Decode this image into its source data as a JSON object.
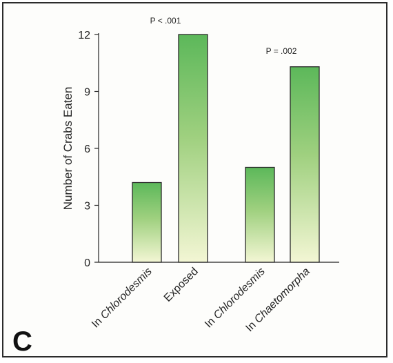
{
  "chart_data": {
    "type": "bar",
    "categories": [
      {
        "pre": "In ",
        "italic": "Chlorodesmis"
      },
      {
        "pre": "",
        "italic": "",
        "plain": "Exposed"
      },
      {
        "pre": "In ",
        "italic": "Chlorodesmis"
      },
      {
        "pre": "In ",
        "italic": "Chaetomorpha"
      }
    ],
    "values": [
      4.2,
      12.0,
      5.0,
      10.3
    ],
    "ylabel": "Number of Crabs Eaten",
    "ylim": [
      0,
      12
    ],
    "yticks": [
      "0",
      "3",
      "6",
      "9",
      "12"
    ],
    "ytick_values": [
      0,
      3,
      6,
      9,
      12
    ],
    "annotations": [
      {
        "text": "P < .001",
        "group": [
          0,
          1
        ]
      },
      {
        "text": "P = .002",
        "group": [
          2,
          3
        ]
      }
    ],
    "panel_label": "C",
    "colors": {
      "bar_top": "#5cb85a",
      "bar_bottom": "#f3f6d4",
      "bar_stroke": "#2a2a2a"
    }
  }
}
